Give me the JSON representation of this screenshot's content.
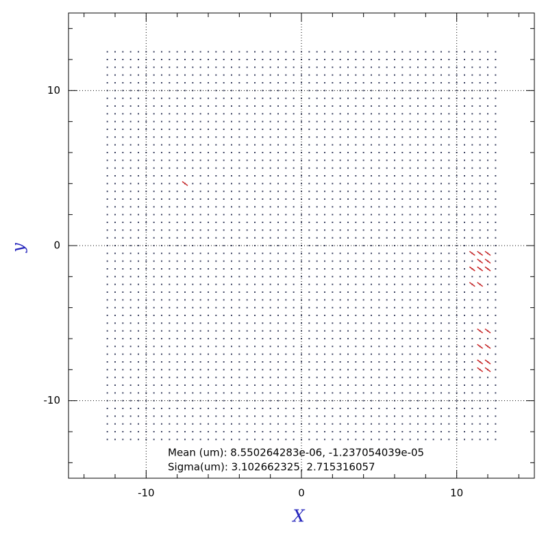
{
  "chart_data": {
    "type": "scatter",
    "xlabel": "X",
    "ylabel": "y",
    "xlim": [
      -15,
      15
    ],
    "ylim": [
      -15,
      15
    ],
    "xticks": [
      -10,
      0,
      10
    ],
    "yticks": [
      -10,
      0,
      10
    ],
    "xminorticks": [
      -14,
      -12,
      -8,
      -6,
      -4,
      -2,
      2,
      4,
      6,
      8,
      12,
      14
    ],
    "yminorticks": [
      -14,
      -12,
      -8,
      -6,
      -4,
      -2,
      2,
      4,
      6,
      8,
      12,
      14
    ],
    "grid": true,
    "grid_points": {
      "color": "#3a4060",
      "x": [
        -12.5,
        -12,
        -11.5,
        -11,
        -10.5,
        -10,
        -9.5,
        -9,
        -8.5,
        -8,
        -7.5,
        -7,
        -6.5,
        -6,
        -5.5,
        -5,
        -4.5,
        -4,
        -3.5,
        -3,
        -2.5,
        -2,
        -1.5,
        -1,
        -0.5,
        0,
        0.5,
        1,
        1.5,
        2,
        2.5,
        3,
        3.5,
        4,
        4.5,
        5,
        5.5,
        6,
        6.5,
        7,
        7.5,
        8,
        8.5,
        9,
        9.5,
        10,
        10.5,
        11,
        11.5,
        12,
        12.5
      ],
      "y": [
        -12.5,
        -12,
        -11.5,
        -11,
        -10.5,
        -10,
        -9.5,
        -9,
        -8.5,
        -8,
        -7.5,
        -7,
        -6.5,
        -6,
        -5.5,
        -5,
        -4.5,
        -4,
        -3.5,
        -3,
        -2.5,
        -2,
        -1.5,
        -1,
        -0.5,
        0,
        0.5,
        1,
        1.5,
        2,
        2.5,
        3,
        3.5,
        4,
        4.5,
        5,
        5.5,
        6,
        6.5,
        7,
        7.5,
        8,
        8.5,
        9,
        9.5,
        10,
        10.5,
        11,
        11.5,
        12,
        12.5
      ]
    },
    "highlights": {
      "color": "#cc2020",
      "x": [
        11,
        11.5,
        12,
        11,
        11.5,
        12,
        11,
        11.5,
        12,
        11.5,
        11.5,
        12,
        11.5,
        12,
        11.5,
        12,
        11.5,
        12,
        -7.5
      ],
      "y": [
        -0.5,
        -0.5,
        -0.5,
        -1.5,
        -1.5,
        -1.5,
        -2.5,
        -2.5,
        -1,
        -1,
        -5.5,
        -5.5,
        -6.5,
        -6.5,
        -7.5,
        -7.5,
        -8,
        -8,
        4
      ]
    },
    "annotations": [
      "Mean (um): 8.550264283e-06, -1.237054039e-05",
      "Sigma(um): 3.102662325, 2.715316057"
    ]
  }
}
